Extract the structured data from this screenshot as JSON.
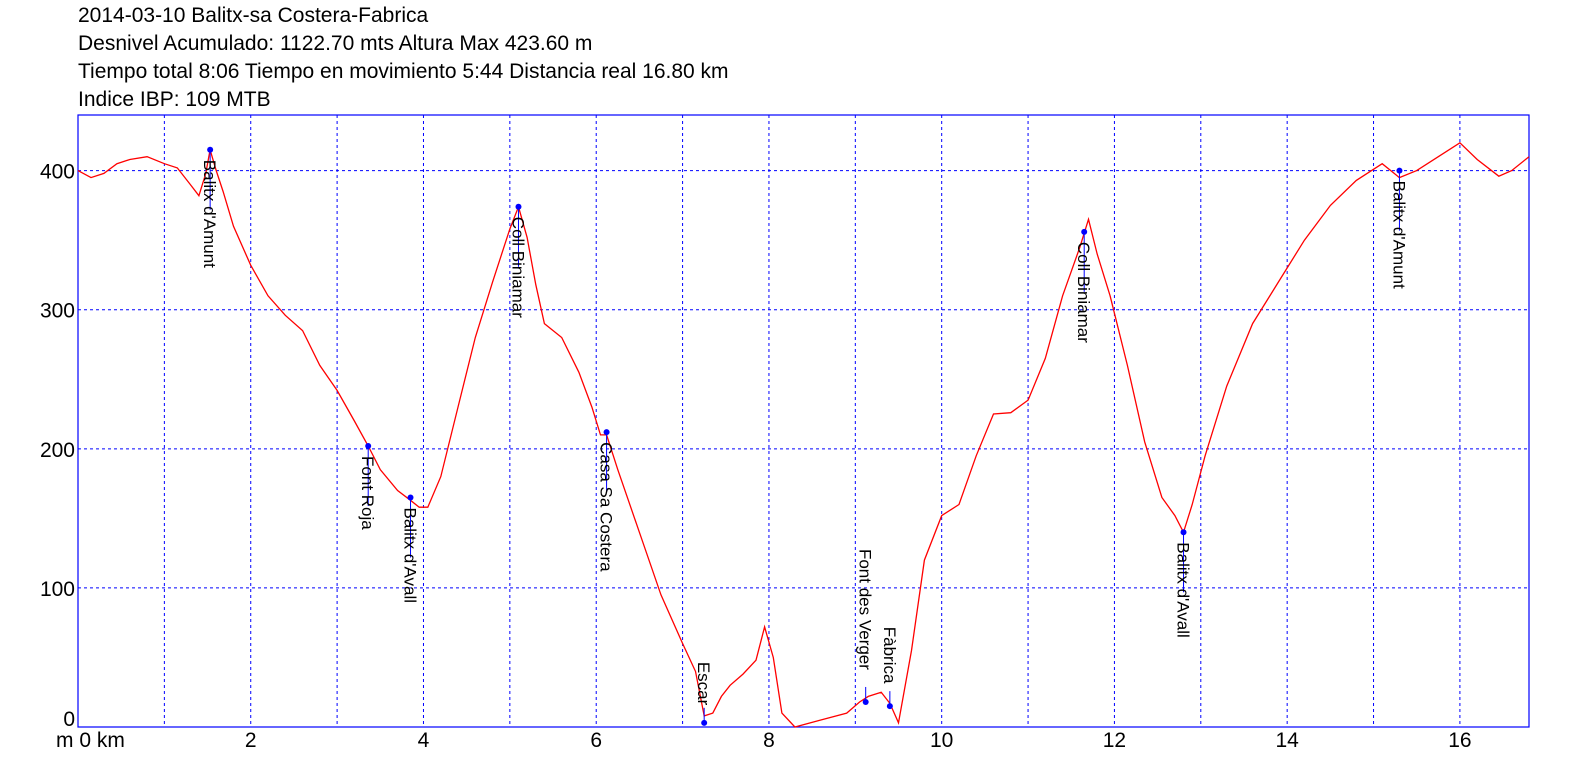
{
  "header": {
    "line1": "2014-03-10 Balitx-sa Costera-Fabrica",
    "line2": "Desnivel Acumulado: 1122.70 mts  Altura Max 423.60 m",
    "line3": "Tiempo total 8:06 Tiempo en movimiento 5:44 Distancia real 16.80 km",
    "line4": "Indice IBP: 109 MTB"
  },
  "chart_data": {
    "type": "line",
    "xlim": [
      0,
      16.8
    ],
    "ylim": [
      0,
      440
    ],
    "x_ticks": [
      2,
      4,
      6,
      8,
      10,
      12,
      14,
      16
    ],
    "x_grid": [
      1,
      2,
      3,
      4,
      5,
      6,
      7,
      8,
      9,
      10,
      11,
      12,
      13,
      14,
      15,
      16
    ],
    "y_ticks": [
      100,
      200,
      300,
      400
    ],
    "x_tick_labels": [
      "2",
      "4",
      "6",
      "8",
      "10",
      "12",
      "14",
      "16"
    ],
    "y_tick_labels": [
      "100",
      "200",
      "300",
      "400"
    ],
    "origin_y_label": "0",
    "origin_x_label": "m 0 km",
    "grid": true,
    "colors": {
      "profile": "#ff0000",
      "grid": "#0000ff",
      "frame": "#0000ff",
      "waypoint": "#0000ff"
    },
    "series": [
      {
        "x": [
          0,
          0.15,
          0.3,
          0.45,
          0.6,
          0.8,
          1.0,
          1.15,
          1.3,
          1.4,
          1.48,
          1.53,
          1.6,
          1.68,
          1.8,
          2.0,
          2.2,
          2.4,
          2.6,
          2.8,
          3.0,
          3.2,
          3.36,
          3.5,
          3.7,
          3.85,
          3.95,
          4.05,
          4.2,
          4.4,
          4.6,
          4.8,
          5.0,
          5.1,
          5.2,
          5.3,
          5.4,
          5.6,
          5.8,
          5.95,
          6.05,
          6.12,
          6.25,
          6.5,
          6.75,
          7.0,
          7.15,
          7.25,
          7.35,
          7.45,
          7.55,
          7.7,
          7.85,
          7.95,
          8.05,
          8.15,
          8.3,
          8.6,
          8.9,
          9.05,
          9.15,
          9.3,
          9.4,
          9.5,
          9.65,
          9.8,
          10.0,
          10.2,
          10.4,
          10.6,
          10.8,
          11.0,
          11.2,
          11.4,
          11.6,
          11.7,
          11.8,
          11.95,
          12.15,
          12.35,
          12.55,
          12.7,
          12.8,
          12.9,
          13.05,
          13.3,
          13.6,
          13.9,
          14.2,
          14.5,
          14.8,
          15.1,
          15.3,
          15.5,
          15.75,
          16.0,
          16.2,
          16.45,
          16.6,
          16.8
        ],
        "y": [
          400,
          395,
          398,
          405,
          408,
          410,
          405,
          402,
          390,
          382,
          398,
          415,
          400,
          385,
          360,
          332,
          310,
          296,
          285,
          260,
          242,
          220,
          202,
          185,
          170,
          163,
          158,
          158,
          180,
          230,
          280,
          320,
          358,
          374,
          352,
          318,
          290,
          280,
          255,
          230,
          210,
          210,
          185,
          140,
          95,
          60,
          40,
          8,
          10,
          22,
          30,
          38,
          48,
          72,
          50,
          10,
          0,
          5,
          10,
          18,
          22,
          25,
          17,
          3,
          55,
          120,
          152,
          160,
          195,
          225,
          226,
          235,
          265,
          310,
          345,
          365,
          340,
          310,
          260,
          205,
          165,
          152,
          140,
          160,
          195,
          245,
          290,
          320,
          350,
          375,
          393,
          405,
          395,
          400,
          410,
          420,
          408,
          396,
          400,
          410
        ]
      }
    ],
    "waypoints": [
      {
        "x": 1.53,
        "y": 415,
        "label": "Balitx d'Amunt"
      },
      {
        "x": 3.36,
        "y": 202,
        "label": "Font Roja"
      },
      {
        "x": 3.85,
        "y": 165,
        "label": "Balitx d'Avall"
      },
      {
        "x": 5.1,
        "y": 374,
        "label": "Coll Biniamar"
      },
      {
        "x": 6.12,
        "y": 212,
        "label": "Casa Sa Costera"
      },
      {
        "x": 7.25,
        "y": 3,
        "label": "Escar"
      },
      {
        "x": 9.12,
        "y": 18,
        "label": "Font des Verger"
      },
      {
        "x": 9.4,
        "y": 15,
        "label": "Fàbrica"
      },
      {
        "x": 11.65,
        "y": 356,
        "label": "Coll Biniamar"
      },
      {
        "x": 12.8,
        "y": 140,
        "label": "Balitx d'Avall"
      },
      {
        "x": 15.3,
        "y": 400,
        "label": "Balitx d'Amunt"
      }
    ]
  }
}
